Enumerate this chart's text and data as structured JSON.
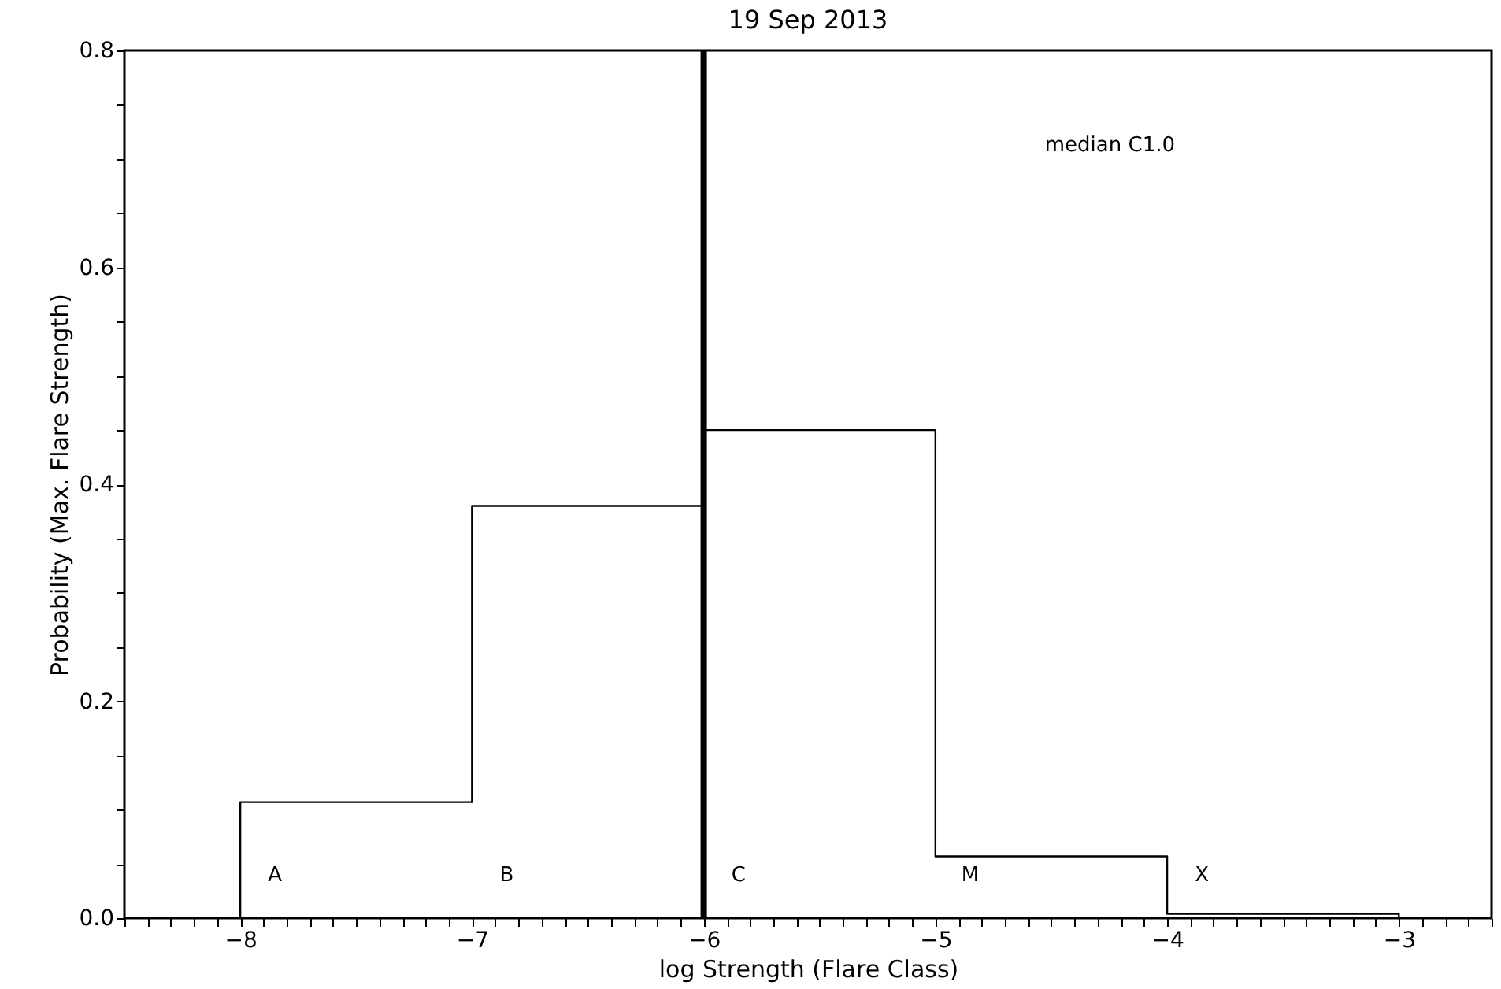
{
  "chart_data": {
    "type": "histogram",
    "title": "19 Sep 2013",
    "xlabel": "log Strength (Flare Class)",
    "ylabel": "Probability (Max. Flare Strength)",
    "bins": [
      -8,
      -7,
      -6,
      -5,
      -4,
      -3
    ],
    "values": [
      0.107,
      0.38,
      0.45,
      0.057,
      0.004
    ],
    "color": "#000000",
    "xlim": [
      -8.5,
      -2.6
    ],
    "ylim": [
      0,
      0.8
    ],
    "xticks": [
      {
        "value": -8.5,
        "label": null
      },
      {
        "value": -8.4,
        "label": null
      },
      {
        "value": -8.3,
        "label": null
      },
      {
        "value": -8.2,
        "label": null
      },
      {
        "value": -8.1,
        "label": null
      },
      -8,
      {
        "value": -7.9,
        "label": null
      },
      {
        "value": -7.8,
        "label": null
      },
      {
        "value": -7.7,
        "label": null
      },
      {
        "value": -7.6,
        "label": null
      },
      {
        "value": -7.5,
        "label": null
      },
      {
        "value": -7.4,
        "label": null
      },
      {
        "value": -7.3,
        "label": null
      },
      {
        "value": -7.2,
        "label": null
      },
      {
        "value": -7.1,
        "label": null
      },
      -7,
      {
        "value": -6.9,
        "label": null
      },
      {
        "value": -6.8,
        "label": null
      },
      {
        "value": -6.7,
        "label": null
      },
      {
        "value": -6.6,
        "label": null
      },
      {
        "value": -6.5,
        "label": null
      },
      {
        "value": -6.4,
        "label": null
      },
      {
        "value": -6.3,
        "label": null
      },
      {
        "value": -6.2,
        "label": null
      },
      {
        "value": -6.1,
        "label": null
      },
      -6,
      {
        "value": -5.9,
        "label": null
      },
      {
        "value": -5.8,
        "label": null
      },
      {
        "value": -5.7,
        "label": null
      },
      {
        "value": -5.6,
        "label": null
      },
      {
        "value": -5.5,
        "label": null
      },
      {
        "value": -5.4,
        "label": null
      },
      {
        "value": -5.3,
        "label": null
      },
      {
        "value": -5.2,
        "label": null
      },
      {
        "value": -5.1,
        "label": null
      },
      -5,
      {
        "value": -4.9,
        "label": null
      },
      {
        "value": -4.8,
        "label": null
      },
      {
        "value": -4.7,
        "label": null
      },
      {
        "value": -4.6,
        "label": null
      },
      {
        "value": -4.5,
        "label": null
      },
      {
        "value": -4.4,
        "label": null
      },
      {
        "value": -4.3,
        "label": null
      },
      {
        "value": -4.2,
        "label": null
      },
      {
        "value": -4.1,
        "label": null
      },
      -4,
      {
        "value": -3.9,
        "label": null
      },
      {
        "value": -3.8,
        "label": null
      },
      {
        "value": -3.7,
        "label": null
      },
      {
        "value": -3.6,
        "label": null
      },
      {
        "value": -3.5,
        "label": null
      },
      {
        "value": -3.4,
        "label": null
      },
      {
        "value": -3.3,
        "label": null
      },
      {
        "value": -3.2,
        "label": null
      },
      {
        "value": -3.1,
        "label": null
      },
      -3,
      {
        "value": -2.9,
        "label": null
      },
      {
        "value": -2.8,
        "label": null
      },
      {
        "value": -2.7,
        "label": null
      },
      {
        "value": -2.6,
        "label": null
      }
    ],
    "yticks": [
      {
        "value": 0,
        "label": "0.0"
      },
      {
        "value": 0.05,
        "label": null
      },
      {
        "value": 0.1,
        "label": null
      },
      {
        "value": 0.15,
        "label": null
      },
      0.2,
      {
        "value": 0.25,
        "label": null
      },
      {
        "value": 0.3,
        "label": null
      },
      {
        "value": 0.35,
        "label": null
      },
      0.4,
      {
        "value": 0.45,
        "label": null
      },
      {
        "value": 0.5,
        "label": null
      },
      {
        "value": 0.55,
        "label": null
      },
      0.6,
      {
        "value": 0.65,
        "label": null
      },
      {
        "value": 0.7,
        "label": null
      },
      {
        "value": 0.75,
        "label": null
      },
      0.8
    ],
    "ref_lines": [
      {
        "axis": "x",
        "value": -6,
        "color": "#000000"
      }
    ],
    "annotations": [
      "A",
      "B",
      "C",
      "M",
      "X",
      "median C1.0"
    ],
    "grid": false
  }
}
